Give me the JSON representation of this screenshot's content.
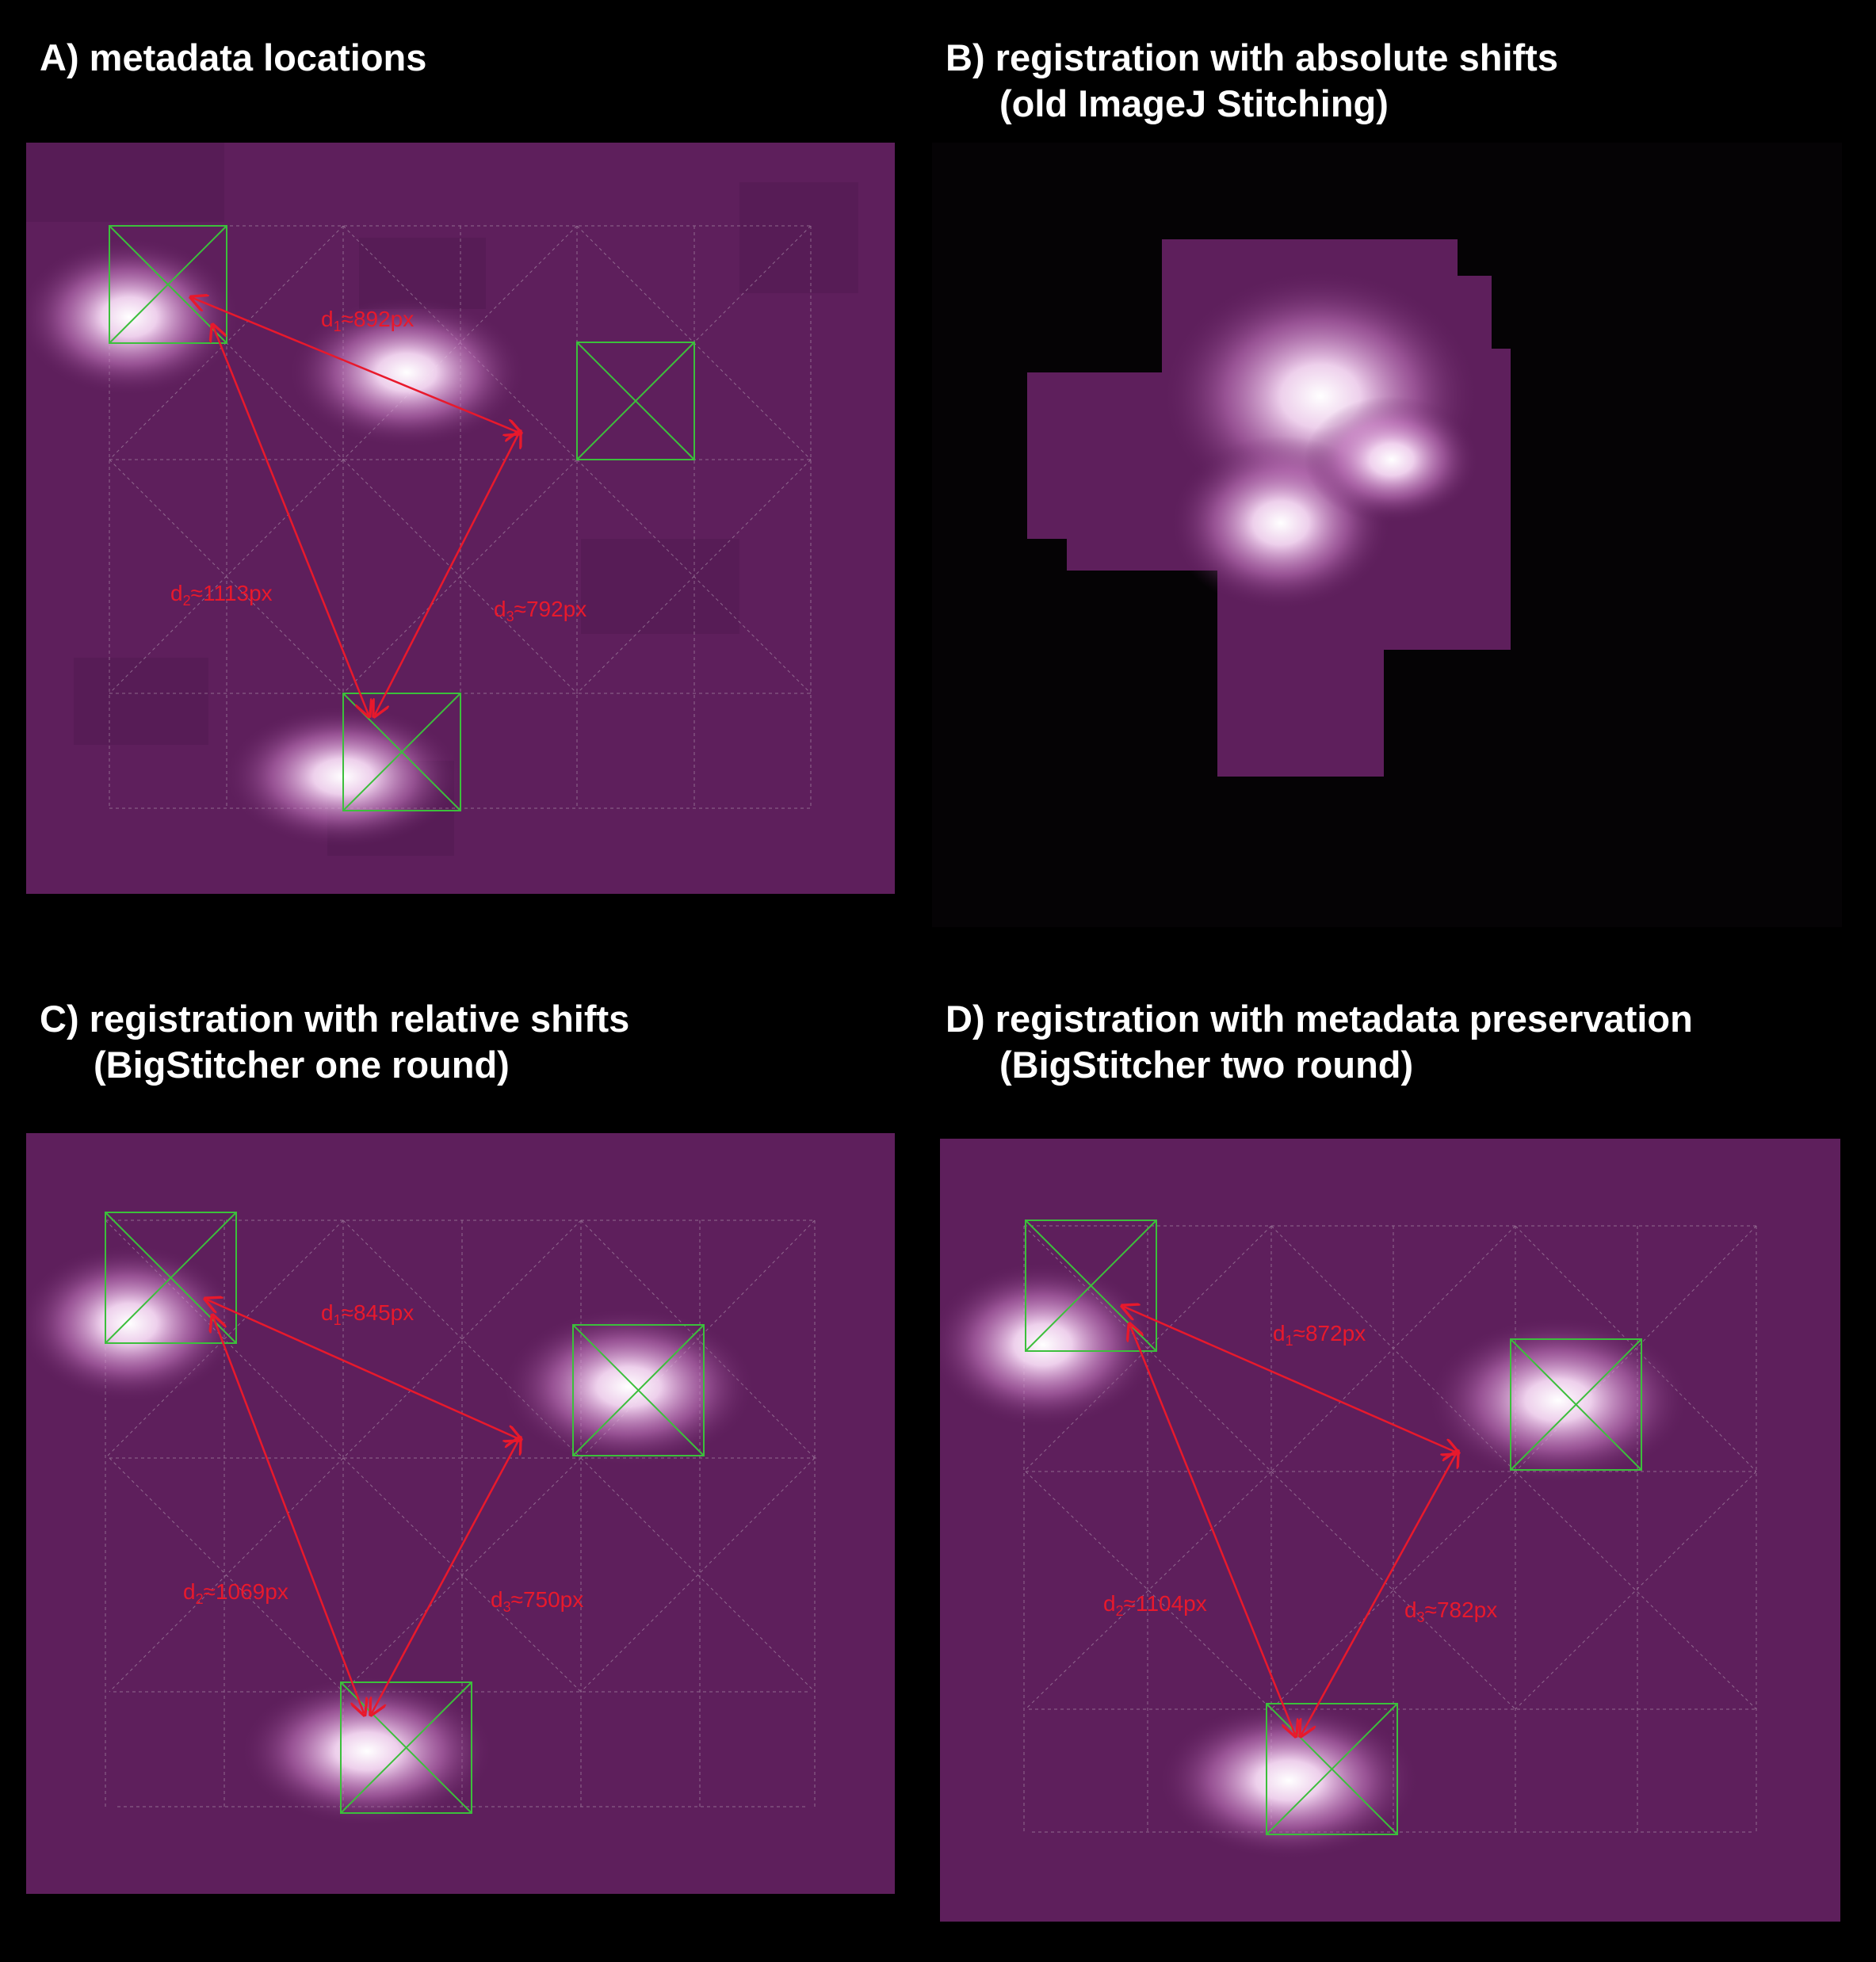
{
  "panels": {
    "A": {
      "title": "A) metadata locations",
      "subtitle": "",
      "d1": {
        "pre": "d",
        "sub": "1",
        "val": "≈892px"
      },
      "d2": {
        "pre": "d",
        "sub": "2",
        "val": "≈1113px"
      },
      "d3": {
        "pre": "d",
        "sub": "3",
        "val": "≈792px"
      }
    },
    "B": {
      "title": "B) registration with absolute shifts",
      "subtitle": "(old ImageJ Stitching)"
    },
    "C": {
      "title": "C) registration with relative shifts",
      "subtitle": "(BigStitcher one round)",
      "d1": {
        "pre": "d",
        "sub": "1",
        "val": "≈845px"
      },
      "d2": {
        "pre": "d",
        "sub": "2",
        "val": "≈1069px"
      },
      "d3": {
        "pre": "d",
        "sub": "3",
        "val": "≈750px"
      }
    },
    "D": {
      "title": "D) registration with metadata preservation",
      "subtitle": "(BigStitcher two round)",
      "d1": {
        "pre": "d",
        "sub": "1",
        "val": "≈872px"
      },
      "d2": {
        "pre": "d",
        "sub": "2",
        "val": "≈1104px"
      },
      "d3": {
        "pre": "d",
        "sub": "3",
        "val": "≈782px"
      }
    }
  },
  "colors": {
    "background": "#000000",
    "tile": "#5e1f5c",
    "tile_alt": "#531a52",
    "fractal": "#f2d6f0",
    "grid": "#b9a4b8",
    "box": "#3cbf3c",
    "arrow": "#e8192c"
  }
}
